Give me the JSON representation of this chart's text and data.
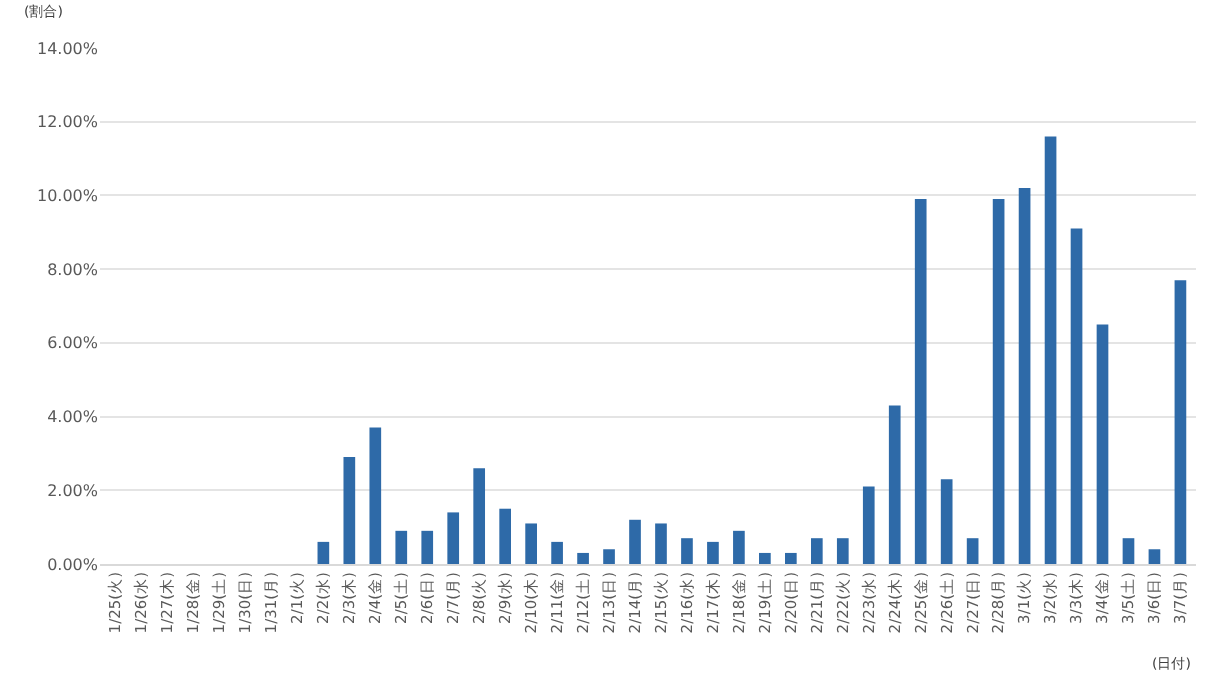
{
  "chart_data": {
    "type": "bar",
    "ylabel": "(割合)",
    "xlabel": "(日付)",
    "categories": [
      "1/25(火)",
      "1/26(水)",
      "1/27(木)",
      "1/28(金)",
      "1/29(土)",
      "1/30(日)",
      "1/31(月)",
      "2/1(火)",
      "2/2(水)",
      "2/3(木)",
      "2/4(金)",
      "2/5(土)",
      "2/6(日)",
      "2/7(月)",
      "2/8(火)",
      "2/9(水)",
      "2/10(木)",
      "2/11(金)",
      "2/12(土)",
      "2/13(日)",
      "2/14(月)",
      "2/15(火)",
      "2/16(水)",
      "2/17(木)",
      "2/18(金)",
      "2/19(土)",
      "2/20(日)",
      "2/21(月)",
      "2/22(火)",
      "2/23(水)",
      "2/24(木)",
      "2/25(金)",
      "2/26(土)",
      "2/27(日)",
      "2/28(月)",
      "3/1(火)",
      "3/2(水)",
      "3/3(木)",
      "3/4(金)",
      "3/5(土)",
      "3/6(日)",
      "3/7(月)"
    ],
    "values": [
      0,
      0,
      0,
      0,
      0,
      0,
      0,
      0,
      0.6,
      2.9,
      3.7,
      0.9,
      0.9,
      1.4,
      2.6,
      1.5,
      1.1,
      0.6,
      0.3,
      0.4,
      1.2,
      1.1,
      0.7,
      0.6,
      0.9,
      0.3,
      0.3,
      0.7,
      0.7,
      2.1,
      4.3,
      9.9,
      2.3,
      0.7,
      9.9,
      10.2,
      11.6,
      9.1,
      6.5,
      0.7,
      0.4,
      7.7
    ],
    "color": "#2e6aa8",
    "ylim": [
      0,
      14
    ],
    "yticks": [
      {
        "value": 0,
        "label": "0.00%"
      },
      {
        "value": 2,
        "label": "2.00%"
      },
      {
        "value": 4,
        "label": "4.00%"
      },
      {
        "value": 6,
        "label": "6.00%"
      },
      {
        "value": 8,
        "label": "8.00%"
      },
      {
        "value": 10,
        "label": "10.00%"
      },
      {
        "value": 12,
        "label": "12.00%"
      },
      {
        "value": 14,
        "label": "14.00%"
      }
    ],
    "grid": "y"
  }
}
